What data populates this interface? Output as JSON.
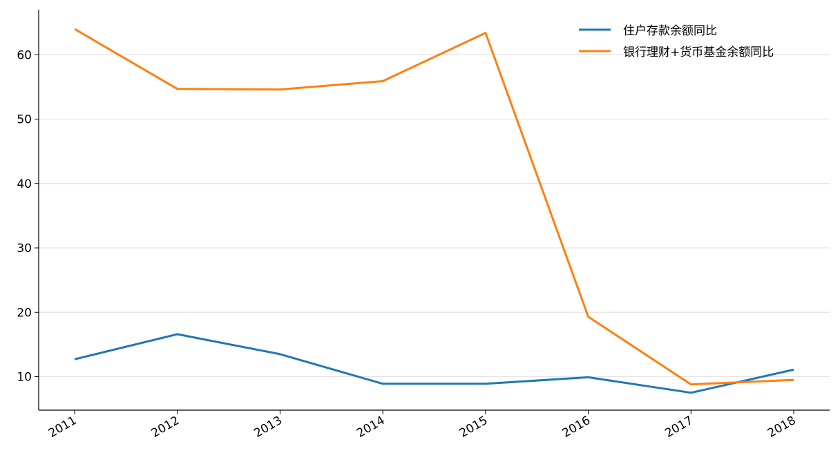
{
  "chart_data": {
    "type": "line",
    "title": "",
    "xlabel": "",
    "ylabel": "",
    "x": [
      "2011",
      "2012",
      "2013",
      "2014",
      "2015",
      "2016",
      "2017",
      "2018"
    ],
    "ylim": [
      4.8,
      67
    ],
    "yticks": [
      10,
      20,
      30,
      40,
      50,
      60
    ],
    "grid": "horizontal",
    "legend_position": "top-right",
    "series": [
      {
        "name": "住户存款余额同比",
        "color": "#1f77b4",
        "values": [
          12.7,
          16.6,
          13.5,
          8.9,
          8.9,
          9.9,
          7.5,
          11.1
        ]
      },
      {
        "name": "银行理财+货币基金余额同比",
        "color": "#ff7f0e",
        "values": [
          64.0,
          54.7,
          54.6,
          55.9,
          63.4,
          19.3,
          8.8,
          9.5
        ]
      }
    ]
  }
}
